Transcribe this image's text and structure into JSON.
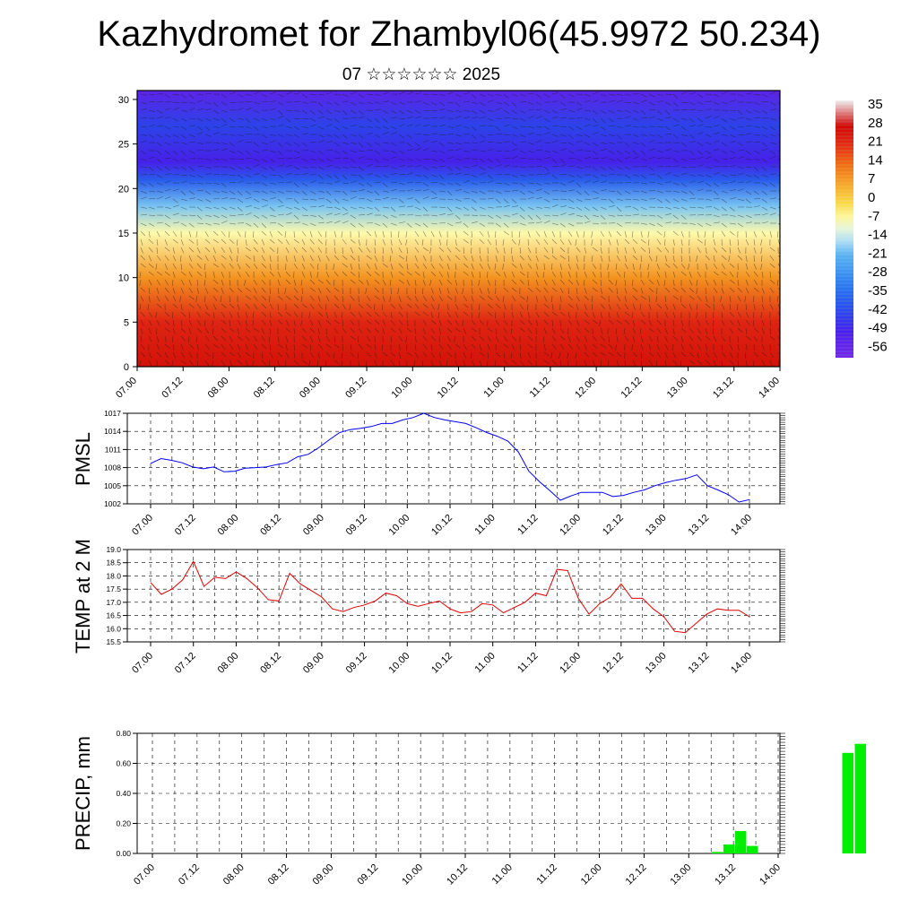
{
  "header": {
    "title": "Kazhydromet for Zhambyl06(45.9972 50.234)",
    "subtitle": "07 ☆☆☆☆☆☆ 2025"
  },
  "chart_data": [
    {
      "type": "heatmap",
      "name": "vertical-cross-section",
      "title": "Kazhydromet for Zhambyl06(45.9972 50.234)",
      "subtitle": "07 ☆☆☆☆☆☆ 2025",
      "x_ticks": [
        "07.00",
        "07.12",
        "08.00",
        "08.12",
        "09.00",
        "09.12",
        "10.00",
        "10.12",
        "11.00",
        "11.12",
        "12.00",
        "12.12",
        "13.00",
        "13.12",
        "14.00"
      ],
      "y_ticks": [
        0,
        5,
        10,
        15,
        20,
        25,
        30
      ],
      "ylim": [
        0,
        31
      ],
      "colorbar_labels": [
        35,
        28,
        21,
        14,
        7,
        0,
        -7,
        -14,
        -21,
        -28,
        -35,
        -42,
        -49,
        -56
      ],
      "colorbar_colors": [
        "#f2f2f2",
        "#e01818",
        "#f07818",
        "#f0e060",
        "#ffffe0",
        "#60c8f0",
        "#2848e8",
        "#7030e8"
      ],
      "temperature_profile": [
        {
          "z": 0,
          "t": 26
        },
        {
          "z": 5,
          "t": 22
        },
        {
          "z": 10,
          "t": 8
        },
        {
          "z": 15,
          "t": -8
        },
        {
          "z": 18,
          "t": -20
        },
        {
          "z": 21,
          "t": -40
        },
        {
          "z": 23,
          "t": -52
        },
        {
          "z": 27,
          "t": -45
        },
        {
          "z": 31,
          "t": -56
        }
      ]
    },
    {
      "type": "line",
      "name": "pmsl",
      "ylabel": "PMSL",
      "y_ticks": [
        1002,
        1005,
        1008,
        1011,
        1014,
        1017
      ],
      "ylim": [
        1002,
        1017
      ],
      "x_ticks": [
        "07.00",
        "07.12",
        "08.00",
        "08.12",
        "09.00",
        "09.12",
        "10.00",
        "10.12",
        "11.00",
        "11.12",
        "12.00",
        "12.12",
        "13.00",
        "13.12",
        "14.00"
      ],
      "color": "#0000ff",
      "values": [
        1008.7,
        1009.5,
        1009.2,
        1008.8,
        1008.1,
        1007.8,
        1008.1,
        1007.3,
        1007.4,
        1007.9,
        1008.0,
        1008.1,
        1008.5,
        1008.8,
        1009.8,
        1010.2,
        1011.3,
        1012.6,
        1013.8,
        1014.3,
        1014.5,
        1014.8,
        1015.3,
        1015.3,
        1015.9,
        1016.3,
        1017.0,
        1016.3,
        1015.9,
        1015.6,
        1015.3,
        1014.6,
        1013.8,
        1013.2,
        1012.4,
        1010.6,
        1007.4,
        1005.7,
        1004.2,
        1002.6,
        1003.3,
        1003.9,
        1003.9,
        1003.9,
        1003.2,
        1003.4,
        1003.9,
        1004.3,
        1005.0,
        1005.5,
        1005.9,
        1006.2,
        1006.8,
        1005.0,
        1004.3,
        1003.5,
        1002.3,
        1002.7
      ]
    },
    {
      "type": "line",
      "name": "temp-2m",
      "ylabel": "TEMP at 2 M",
      "y_ticks": [
        "15.5",
        "16.0",
        "16.5",
        "17.0",
        "17.5",
        "18.0",
        "18.5",
        "19.0"
      ],
      "ylim": [
        15.5,
        19.0
      ],
      "x_ticks": [
        "07.00",
        "07.12",
        "08.00",
        "08.12",
        "09.00",
        "09.12",
        "10.00",
        "10.12",
        "11.00",
        "11.12",
        "12.00",
        "12.12",
        "13.00",
        "13.12",
        "14.00"
      ],
      "color": "#e00000",
      "values": [
        17.75,
        17.3,
        17.5,
        17.85,
        18.55,
        17.6,
        17.95,
        17.9,
        18.15,
        17.9,
        17.55,
        17.1,
        17.05,
        18.1,
        17.7,
        17.45,
        17.2,
        16.75,
        16.65,
        16.8,
        16.9,
        17.05,
        17.35,
        17.25,
        16.95,
        16.85,
        16.95,
        17.05,
        16.75,
        16.6,
        16.65,
        16.95,
        16.9,
        16.6,
        16.8,
        17.0,
        17.35,
        17.25,
        18.25,
        18.2,
        17.15,
        16.55,
        16.95,
        17.2,
        17.7,
        17.15,
        17.15,
        16.75,
        16.45,
        15.9,
        15.85,
        16.2,
        16.55,
        16.75,
        16.7,
        16.7,
        16.45
      ]
    },
    {
      "type": "bar",
      "name": "precip",
      "ylabel": "PRECIP, mm",
      "y_ticks": [
        "0.00",
        "0.20",
        "0.40",
        "0.60",
        "0.80"
      ],
      "ylim": [
        0,
        0.8
      ],
      "x_ticks": [
        "07.00",
        "07.12",
        "08.00",
        "08.12",
        "09.00",
        "09.12",
        "10.00",
        "10.12",
        "11.00",
        "11.12",
        "12.00",
        "12.12",
        "13.00",
        "13.12",
        "14.00"
      ],
      "color": "#00ee00",
      "bars": [
        {
          "x": 6.32,
          "value": 0.01
        },
        {
          "x": 6.45,
          "value": 0.06
        },
        {
          "x": 6.58,
          "value": 0.15
        },
        {
          "x": 6.71,
          "value": 0.05
        },
        {
          "x": 7.78,
          "value": 0.67
        },
        {
          "x": 7.92,
          "value": 0.73
        }
      ]
    }
  ]
}
